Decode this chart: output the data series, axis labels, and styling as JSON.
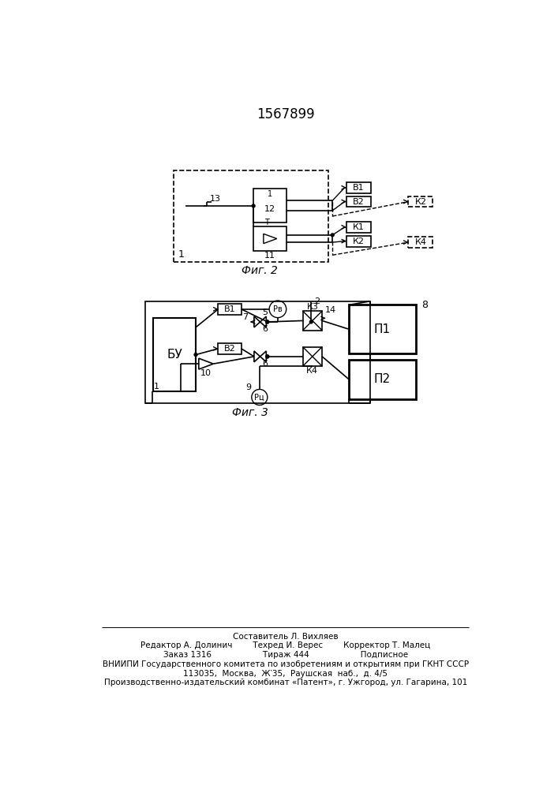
{
  "title": "1567899",
  "fig2_caption": "Фиг. 2",
  "fig3_caption": "Фиг. 3",
  "bg_color": "#ffffff",
  "line_color": "#000000",
  "footer": [
    [
      "Составитель Л. Вихляев",
      353,
      108
    ],
    [
      "Редактор А. Долинич        Техред И. Верес        Корректор Т. Малец",
      353,
      93
    ],
    [
      "Заказ 1316                    Тираж 444                    Подписное",
      353,
      78
    ],
    [
      "ВНИИПИ Государственного комитета по изобретениям и открытиям при ГКНТ СССР",
      353,
      62
    ],
    [
      "113035,  Москва,  Ж‵35,  Раушская  наб.,  д. 4/5",
      353,
      48
    ],
    [
      "Производственно-издательский комбинат «Патент», г. Ужгород, ул. Гагарина, 101",
      353,
      33
    ]
  ]
}
